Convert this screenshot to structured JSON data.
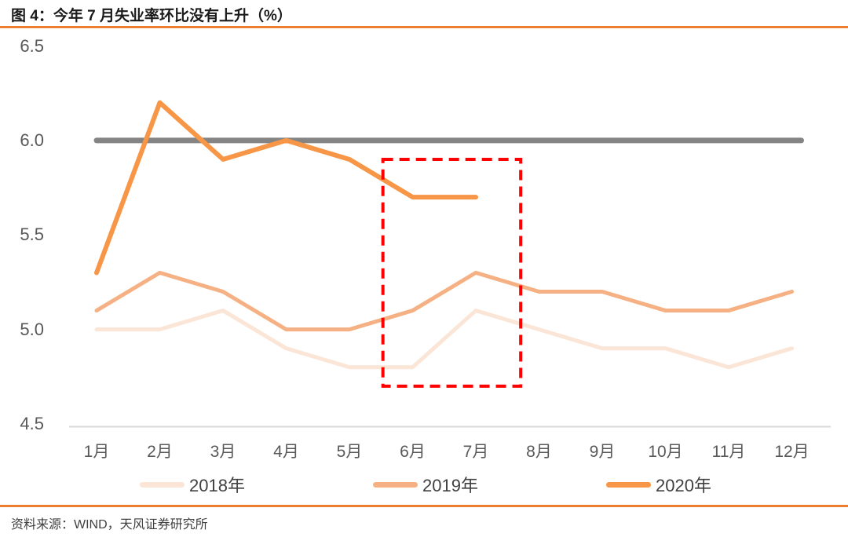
{
  "header": {
    "title": "图 4：今年 7 月失业率环比没有上升（%）"
  },
  "footer": {
    "source": "资料来源：WIND，天风证券研究所"
  },
  "colors": {
    "accent_rule": "#ED7D31",
    "title_text": "#1A1A1A",
    "axis_text": "#595959",
    "axis_line": "#D9D9D9",
    "legend_text": "#404040"
  },
  "chart_data": {
    "type": "line",
    "title": "图 4：今年 7 月失业率环比没有上升（%）",
    "xlabel": "",
    "ylabel": "",
    "ylim": [
      4.5,
      6.5
    ],
    "grid": false,
    "legend_position": "bottom",
    "categories": [
      "1月",
      "2月",
      "3月",
      "4月",
      "5月",
      "6月",
      "7月",
      "8月",
      "9月",
      "10月",
      "11月",
      "12月"
    ],
    "ytick_labels": [
      "6.5",
      "6.0",
      "5.5",
      "5.0",
      "4.5"
    ],
    "yticks": [
      6.5,
      6.0,
      5.5,
      5.0,
      4.5
    ],
    "series": [
      {
        "name": "2018年",
        "color": "#FBE5D6",
        "values": [
          5.0,
          5.0,
          5.1,
          4.9,
          4.8,
          4.8,
          5.1,
          5.0,
          4.9,
          4.9,
          4.8,
          4.9
        ]
      },
      {
        "name": "2019年",
        "color": "#F5B183",
        "values": [
          5.1,
          5.3,
          5.2,
          5.0,
          5.0,
          5.1,
          5.3,
          5.2,
          5.2,
          5.1,
          5.1,
          5.2
        ]
      },
      {
        "name": "2020年",
        "color": "#F79646",
        "values": [
          5.3,
          6.2,
          5.9,
          6.0,
          5.9,
          5.7,
          5.7
        ]
      }
    ],
    "reference_line": {
      "value": 6.0,
      "color": "#848484"
    },
    "annotation": {
      "type": "dashed-box",
      "color": "#FF0000",
      "highlights": "6月-7月",
      "x_from_month_index": 4.53,
      "x_to_month_index": 6.71,
      "value_top": 5.9,
      "value_bottom": 4.7
    }
  }
}
